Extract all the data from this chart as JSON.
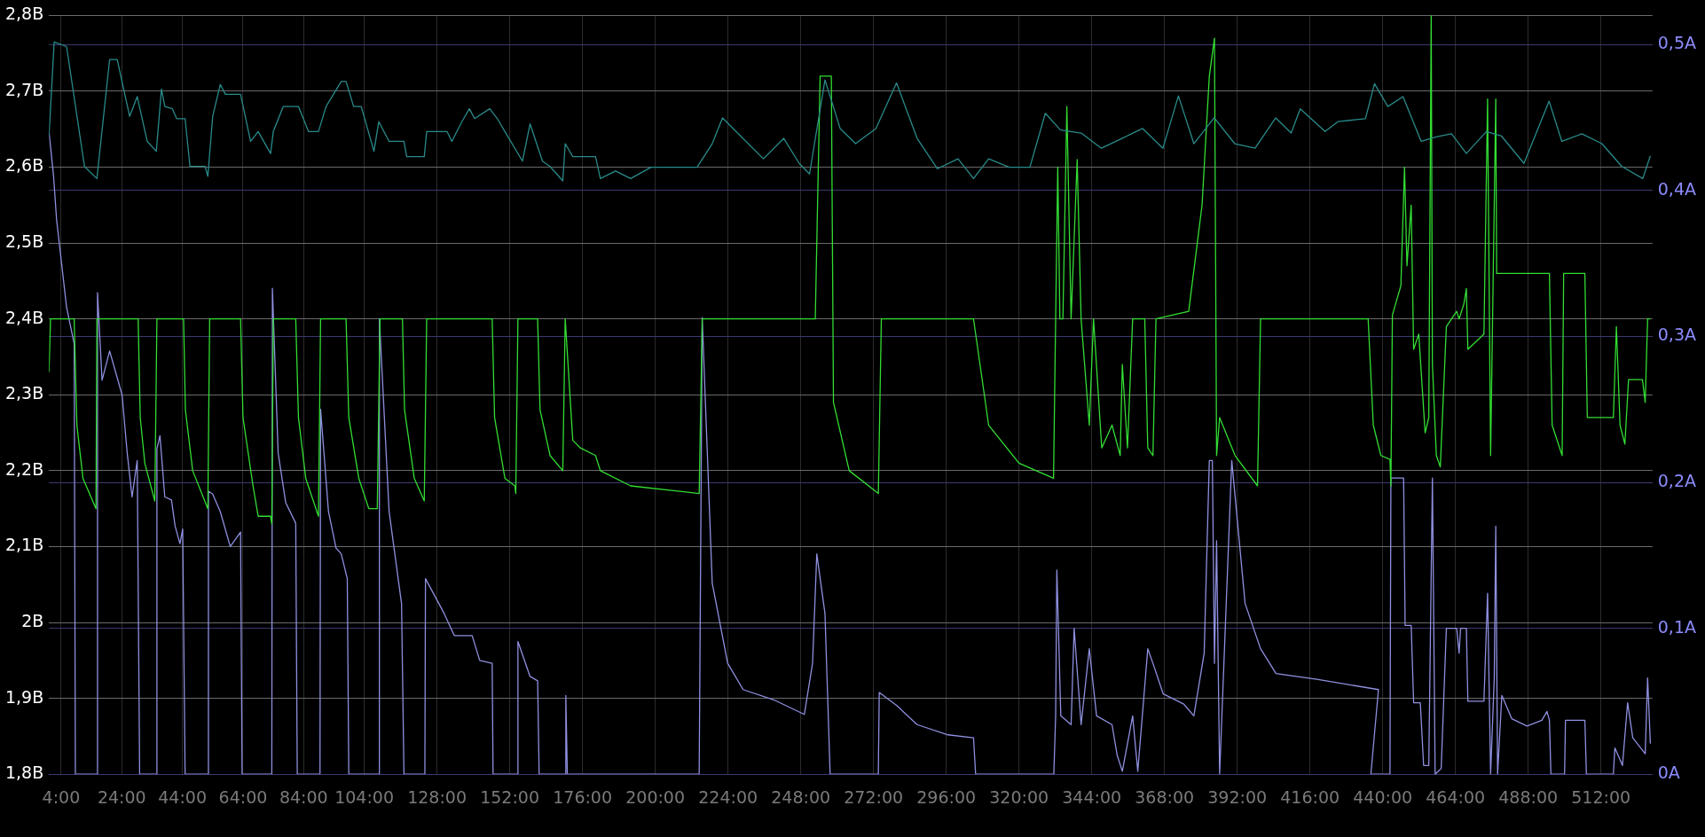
{
  "chart_data": {
    "type": "line",
    "xlim": [
      0,
      529
    ],
    "xticks": [
      {
        "value": 4,
        "label": "4:00"
      },
      {
        "value": 24,
        "label": "24:00"
      },
      {
        "value": 44,
        "label": "44:00"
      },
      {
        "value": 64,
        "label": "64:00"
      },
      {
        "value": 84,
        "label": "84:00"
      },
      {
        "value": 104,
        "label": "104:00"
      },
      {
        "value": 128,
        "label": "128:00"
      },
      {
        "value": 152,
        "label": "152:00"
      },
      {
        "value": 176,
        "label": "176:00"
      },
      {
        "value": 200,
        "label": "200:00"
      },
      {
        "value": 224,
        "label": "224:00"
      },
      {
        "value": 248,
        "label": "248:00"
      },
      {
        "value": 272,
        "label": "272:00"
      },
      {
        "value": 296,
        "label": "296:00"
      },
      {
        "value": 320,
        "label": "320:00"
      },
      {
        "value": 344,
        "label": "344:00"
      },
      {
        "value": 368,
        "label": "368:00"
      },
      {
        "value": 392,
        "label": "392:00"
      },
      {
        "value": 416,
        "label": "416:00"
      },
      {
        "value": 440,
        "label": "440:00"
      },
      {
        "value": 464,
        "label": "464:00"
      },
      {
        "value": 488,
        "label": "488:00"
      },
      {
        "value": 512,
        "label": "512:00"
      }
    ],
    "ylim": [
      1.8,
      2.8
    ],
    "yticks": [
      {
        "value": 1.8,
        "label": "1,8В"
      },
      {
        "value": 1.9,
        "label": "1,9В"
      },
      {
        "value": 2.0,
        "label": "2В"
      },
      {
        "value": 2.1,
        "label": "2,1В"
      },
      {
        "value": 2.2,
        "label": "2,2В"
      },
      {
        "value": 2.3,
        "label": "2,3В"
      },
      {
        "value": 2.4,
        "label": "2,4В"
      },
      {
        "value": 2.5,
        "label": "2,5В"
      },
      {
        "value": 2.6,
        "label": "2,6В"
      },
      {
        "value": 2.7,
        "label": "2,7В"
      },
      {
        "value": 2.8,
        "label": "2,8В"
      }
    ],
    "y2lim": [
      0,
      0.52
    ],
    "y2ticks": [
      {
        "value": 0,
        "label": "0A"
      },
      {
        "value": 0.1,
        "label": "0,1A"
      },
      {
        "value": 0.2,
        "label": "0,2A"
      },
      {
        "value": 0.3,
        "label": "0,3A"
      },
      {
        "value": 0.4,
        "label": "0,4A"
      },
      {
        "value": 0.5,
        "label": "0,5A"
      }
    ],
    "grid": true,
    "legend": false,
    "series": [
      {
        "color": "#2a8a8a",
        "x": [
          0,
          1.7,
          5.8,
          11.7,
          15.8,
          20,
          22.5,
          26.6,
          29.1,
          32.4,
          35.4,
          37.1,
          38.2,
          40.7,
          42.1,
          44.9,
          46.5,
          51.5,
          52.4,
          54,
          56.5,
          58.2,
          63.2,
          66.5,
          69,
          73.1,
          74,
          77.3,
          82.3,
          85.6,
          88.9,
          91.4,
          96.4,
          98,
          100.5,
          103,
          107.2,
          108.8,
          112.2,
          117.1,
          118,
          123.8,
          124.6,
          131.3,
          132.9,
          136.2,
          138.7,
          140.4,
          145.4,
          147.9,
          150.4,
          156.2,
          158.7,
          162.8,
          165.3,
          169.5,
          170.3,
          172.8,
          180.3,
          181.9,
          186.9,
          191.9,
          198.6,
          213.8,
          218.8,
          222.2,
          228.9,
          235.7,
          242.4,
          247.5,
          250.9,
          256,
          261,
          266.1,
          272.8,
          279.6,
          286.4,
          293.1,
          299.9,
          305,
          310,
          316.8,
          323.6,
          328.7,
          333.7,
          340.5,
          347.2,
          354,
          360.8,
          367.5,
          372.6,
          377.7,
          384.4,
          391.2,
          397.9,
          404.7,
          409.8,
          412.8,
          421,
          425.2,
          434.3,
          437.3,
          441.7,
          446.7,
          452.7,
          457.7,
          462.7,
          467.6,
          474.2,
          479.2,
          486.6,
          494.9,
          499.1,
          505.7,
          512.3,
          518.9,
          525.8,
          528.3
        ],
        "values": [
          2.641,
          2.765,
          2.759,
          2.601,
          2.585,
          2.742,
          2.742,
          2.667,
          2.693,
          2.634,
          2.621,
          2.703,
          2.68,
          2.677,
          2.664,
          2.664,
          2.601,
          2.601,
          2.588,
          2.667,
          2.709,
          2.696,
          2.696,
          2.634,
          2.647,
          2.618,
          2.647,
          2.68,
          2.68,
          2.647,
          2.647,
          2.68,
          2.713,
          2.713,
          2.68,
          2.68,
          2.621,
          2.66,
          2.634,
          2.634,
          2.614,
          2.614,
          2.647,
          2.647,
          2.634,
          2.66,
          2.677,
          2.664,
          2.677,
          2.664,
          2.647,
          2.608,
          2.657,
          2.608,
          2.601,
          2.582,
          2.631,
          2.614,
          2.614,
          2.585,
          2.595,
          2.585,
          2.6,
          2.6,
          2.631,
          2.665,
          2.638,
          2.611,
          2.638,
          2.605,
          2.591,
          2.715,
          2.651,
          2.631,
          2.651,
          2.711,
          2.638,
          2.598,
          2.611,
          2.585,
          2.611,
          2.6,
          2.6,
          2.671,
          2.649,
          2.645,
          2.625,
          2.638,
          2.651,
          2.625,
          2.694,
          2.631,
          2.665,
          2.631,
          2.625,
          2.665,
          2.645,
          2.677,
          2.647,
          2.66,
          2.664,
          2.71,
          2.68,
          2.693,
          2.634,
          2.64,
          2.644,
          2.618,
          2.647,
          2.641,
          2.605,
          2.687,
          2.634,
          2.644,
          2.631,
          2.601,
          2.585,
          2.615
        ]
      },
      {
        "color": "#33dd33",
        "x": [
          0,
          0.5,
          8.3,
          9.2,
          11.2,
          15.5,
          15.8,
          29.4,
          30.1,
          31.6,
          34.9,
          35.6,
          44.4,
          45,
          47.4,
          52.4,
          53,
          63.2,
          64,
          67.3,
          69,
          73.1,
          73.5,
          74,
          81.4,
          82.3,
          84.7,
          88.9,
          89.6,
          98,
          98.9,
          102.2,
          105.5,
          108.3,
          109.2,
          116.6,
          117.3,
          120.5,
          123.8,
          124.6,
          146.2,
          147,
          150.4,
          153.7,
          154,
          154.7,
          161.2,
          162,
          165.3,
          169.5,
          170.3,
          172.8,
          175.3,
          180.3,
          181.9,
          191.9,
          214.5,
          215.5,
          252.8,
          254.4,
          258.1,
          258.8,
          264,
          273.6,
          274.6,
          305,
          310,
          320,
          331.4,
          332.1,
          332.8,
          333.5,
          334.5,
          335.8,
          337.2,
          339.2,
          340.5,
          343.2,
          344.6,
          347.3,
          350.7,
          353.4,
          354.1,
          355.8,
          357.5,
          361.5,
          362.5,
          364.2,
          365.2,
          376,
          380.4,
          382.8,
          384.5,
          385.2,
          386.2,
          391.3,
          398.7,
          399.7,
          435.2,
          436.9,
          439.4,
          442.4,
          442.7,
          443.2,
          446,
          447.2,
          448,
          449.4,
          450.2,
          451.9,
          454,
          455.2,
          456,
          456.4,
          457.7,
          459,
          461,
          464.4,
          465.2,
          466.8,
          467.6,
          468.1,
          473.4,
          474.6,
          475.6,
          477.3,
          477.6,
          495,
          495.9,
          499.2,
          499.7,
          506.7,
          507.5,
          516.1,
          517.1,
          518.3,
          519.9,
          521.1,
          525.7,
          526.6,
          527.4,
          528.3
        ],
        "values": [
          2.33,
          2.4,
          2.4,
          2.26,
          2.19,
          2.15,
          2.4,
          2.4,
          2.27,
          2.21,
          2.16,
          2.4,
          2.4,
          2.28,
          2.2,
          2.15,
          2.4,
          2.4,
          2.27,
          2.18,
          2.14,
          2.14,
          2.13,
          2.4,
          2.4,
          2.27,
          2.19,
          2.14,
          2.4,
          2.4,
          2.27,
          2.19,
          2.15,
          2.15,
          2.4,
          2.4,
          2.28,
          2.19,
          2.16,
          2.4,
          2.4,
          2.27,
          2.19,
          2.18,
          2.17,
          2.4,
          2.4,
          2.28,
          2.22,
          2.2,
          2.4,
          2.24,
          2.23,
          2.22,
          2.2,
          2.18,
          2.17,
          2.4,
          2.4,
          2.72,
          2.72,
          2.29,
          2.2,
          2.17,
          2.4,
          2.4,
          2.26,
          2.21,
          2.19,
          2.4,
          2.6,
          2.4,
          2.4,
          2.68,
          2.4,
          2.61,
          2.4,
          2.26,
          2.4,
          2.23,
          2.26,
          2.22,
          2.34,
          2.23,
          2.4,
          2.4,
          2.23,
          2.22,
          2.4,
          2.41,
          2.55,
          2.72,
          2.77,
          2.22,
          2.27,
          2.22,
          2.18,
          2.4,
          2.4,
          2.26,
          2.22,
          2.215,
          2.18,
          2.405,
          2.444,
          2.6,
          2.47,
          2.55,
          2.36,
          2.38,
          2.25,
          2.27,
          2.8,
          2.34,
          2.22,
          2.205,
          2.39,
          2.41,
          2.4,
          2.42,
          2.44,
          2.36,
          2.38,
          2.69,
          2.22,
          2.69,
          2.46,
          2.46,
          2.26,
          2.22,
          2.46,
          2.46,
          2.27,
          2.27,
          2.39,
          2.26,
          2.235,
          2.32,
          2.32,
          2.29,
          2.4,
          2.4
        ]
      },
      {
        "color": "#8f8fe0",
        "axis": "y2",
        "x": [
          0,
          1.5,
          2.5,
          5.8,
          8.3,
          8.7,
          15.8,
          16,
          17.5,
          20,
          24.1,
          25.8,
          27.4,
          29.1,
          29.9,
          35.4,
          35.6,
          36.6,
          38.2,
          40.4,
          41.6,
          43.2,
          44.1,
          44.9,
          52.4,
          52.6,
          54,
          56.5,
          59.8,
          63.2,
          63.7,
          73.5,
          73.7,
          75.6,
          78.1,
          81.4,
          81.9,
          89.4,
          89.6,
          92.2,
          94.7,
          96.4,
          98.4,
          98.9,
          108.8,
          109,
          112.2,
          116.3,
          117.1,
          124,
          124.2,
          130.4,
          133.7,
          139.6,
          142.1,
          146.2,
          146.5,
          154.5,
          154.7,
          158.7,
          161.2,
          161.7,
          170.3,
          170.5,
          171,
          214.5,
          215.5,
          218.8,
          223.9,
          229,
          239.1,
          249.2,
          251.9,
          253.3,
          256,
          257.7,
          273.6,
          273.9,
          279.7,
          286.4,
          296.6,
          305,
          305.7,
          331.5,
          332.1,
          332.5,
          333.8,
          337.2,
          338.2,
          340.5,
          343.2,
          345.6,
          350.7,
          352.4,
          354.1,
          357.5,
          359.2,
          362.5,
          364.2,
          367.6,
          374.4,
          377.7,
          381.1,
          382.8,
          383.8,
          384.5,
          385.2,
          386.2,
          390.2,
          394.6,
          399.7,
          404.8,
          418.3,
          438.6,
          436.1,
          442.4,
          442.7,
          446.9,
          447.4,
          449.4,
          450.2,
          452.4,
          453.5,
          455.2,
          456.4,
          457.3,
          459.3,
          461,
          464.4,
          465.2,
          465.7,
          467.6,
          468.1,
          473.4,
          474.6,
          475.6,
          476.8,
          477.3,
          477.9,
          479.3,
          482.6,
          487.6,
          492.5,
          494.2,
          495,
          495.5,
          500,
          500.3,
          506.7,
          507.2,
          516.1,
          516.6,
          519.1,
          520.8,
          522.5,
          526.6,
          527.4,
          528.3
        ],
        "values": [
          0.44,
          0.41,
          0.38,
          0.32,
          0.295,
          0,
          0,
          0.33,
          0.27,
          0.29,
          0.26,
          0.22,
          0.19,
          0.215,
          0,
          0,
          0.223,
          0.232,
          0.19,
          0.188,
          0.17,
          0.158,
          0.168,
          0,
          0,
          0.194,
          0.192,
          0.18,
          0.156,
          0.166,
          0,
          0,
          0.333,
          0.22,
          0.186,
          0.172,
          0,
          0,
          0.25,
          0.18,
          0.155,
          0.151,
          0.134,
          0,
          0,
          0.312,
          0.18,
          0.117,
          0,
          0,
          0.134,
          0.11,
          0.095,
          0.095,
          0.078,
          0.076,
          0,
          0,
          0.091,
          0.067,
          0.064,
          0,
          0,
          0.054,
          0,
          0,
          0.313,
          0.131,
          0.076,
          0.058,
          0.051,
          0.041,
          0.076,
          0.151,
          0.11,
          0,
          0,
          0.056,
          0.047,
          0.034,
          0.027,
          0.025,
          0,
          0,
          0.04,
          0.14,
          0.04,
          0.034,
          0.1,
          0.034,
          0.086,
          0.04,
          0.034,
          0.013,
          0.002,
          0.04,
          0.002,
          0.086,
          0.076,
          0.055,
          0.048,
          0.04,
          0.083,
          0.215,
          0.215,
          0.076,
          0.16,
          0,
          0.215,
          0.117,
          0.086,
          0.069,
          0.065,
          0.058,
          0,
          0,
          0.203,
          0.203,
          0.102,
          0.102,
          0.049,
          0.049,
          0.006,
          0.006,
          0.203,
          0,
          0.004,
          0.1,
          0.1,
          0.083,
          0.1,
          0.1,
          0.05,
          0.05,
          0.124,
          0,
          0.066,
          0.17,
          0,
          0.054,
          0.038,
          0.033,
          0.037,
          0.043,
          0.037,
          0,
          0,
          0.037,
          0.037,
          0,
          0,
          0.018,
          0.006,
          0.049,
          0.025,
          0.014,
          0.066,
          0.021
        ]
      }
    ]
  }
}
